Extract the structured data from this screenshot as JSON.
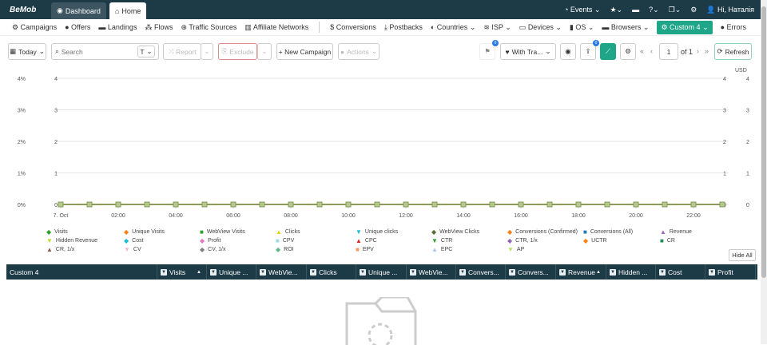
{
  "topbar": {
    "logo": "BeMob",
    "tabs": [
      {
        "label": "Dashboard",
        "active": false
      },
      {
        "label": "Home",
        "active": true
      }
    ],
    "events": "Events",
    "user": "Hi, Наталія"
  },
  "nav": {
    "items": [
      "Campaigns",
      "Offers",
      "Landings",
      "Flows",
      "Traffic Sources",
      "Affiliate Networks"
    ],
    "items2": [
      "Conversions",
      "Postbacks",
      "Countries",
      "ISP",
      "Devices",
      "OS",
      "Browsers",
      "Custom 4",
      "Errors"
    ]
  },
  "toolbar": {
    "date": "Today",
    "search_placeholder": "Search",
    "type": "T",
    "report": "Report",
    "exclude": "Exclude",
    "new_campaign": "+ New Campaign",
    "actions": "Actions",
    "flag_badge": "0",
    "traffic": "With Tra...",
    "share_badge": "0",
    "page": "1",
    "of": "of 1",
    "refresh": "Refresh"
  },
  "chart_data": {
    "type": "line",
    "x": [
      "7. Oct",
      "01:00",
      "02:00",
      "03:00",
      "04:00",
      "05:00",
      "06:00",
      "07:00",
      "08:00",
      "09:00",
      "10:00",
      "11:00",
      "12:00",
      "13:00",
      "14:00",
      "15:00",
      "16:00",
      "17:00",
      "18:00",
      "19:00",
      "20:00",
      "21:00",
      "22:00",
      "23:00"
    ],
    "x_tick_labels": [
      "7. Oct",
      "02:00",
      "04:00",
      "06:00",
      "08:00",
      "10:00",
      "12:00",
      "14:00",
      "16:00",
      "18:00",
      "20:00",
      "22:00"
    ],
    "y_left_pct_ticks": [
      "0%",
      "1%",
      "2%",
      "3%",
      "4%"
    ],
    "y_left_ticks": [
      "0",
      "1",
      "2",
      "3",
      "4"
    ],
    "y_right_ticks": [
      "0",
      "1",
      "2",
      "3",
      "4"
    ],
    "y_right2_ticks": [
      "0",
      "1",
      "2",
      "3",
      "4"
    ],
    "y_right_unit": "USD",
    "ylim": [
      0,
      4
    ],
    "grid": true,
    "values": [
      0,
      0,
      0,
      0,
      0,
      0,
      0,
      0,
      0,
      0,
      0,
      0,
      0,
      0,
      0,
      0,
      0,
      0,
      0,
      0,
      0,
      0,
      0,
      0
    ]
  },
  "legend": [
    {
      "name": "Visits",
      "color": "#2ca02c",
      "sym": "◆"
    },
    {
      "name": "Unique Visits",
      "color": "#ff7f0e",
      "sym": "◆"
    },
    {
      "name": "WebView Visits",
      "color": "#2ca02c",
      "sym": "■"
    },
    {
      "name": "Clicks",
      "color": "#e5d500",
      "sym": "▲"
    },
    {
      "name": "Unique clicks",
      "color": "#17becf",
      "sym": "▼"
    },
    {
      "name": "WebView Clicks",
      "color": "#556b2f",
      "sym": "◆"
    },
    {
      "name": "Conversions (Confirmed)",
      "color": "#ff7f0e",
      "sym": "◆"
    },
    {
      "name": "Conversions (All)",
      "color": "#1f77b4",
      "sym": "■"
    },
    {
      "name": "Revenue",
      "color": "#9467bd",
      "sym": "▲"
    },
    {
      "name": "Hidden Revenue",
      "color": "#bcdc2c",
      "sym": "▼"
    },
    {
      "name": "Cost",
      "color": "#17becf",
      "sym": "◆"
    },
    {
      "name": "Profit",
      "color": "#e377c2",
      "sym": "◆"
    },
    {
      "name": "CPV",
      "color": "#9edae5",
      "sym": "■"
    },
    {
      "name": "CPC",
      "color": "#d62728",
      "sym": "▲"
    },
    {
      "name": "CTR",
      "color": "#2ca02c",
      "sym": "▼"
    },
    {
      "name": "CTR, 1/x",
      "color": "#9467bd",
      "sym": "◆"
    },
    {
      "name": "UCTR",
      "color": "#ff7f0e",
      "sym": "◆"
    },
    {
      "name": "CR",
      "color": "#2a8a5a",
      "sym": "■"
    },
    {
      "name": "CR, 1/x",
      "color": "#8c564b",
      "sym": "▲"
    },
    {
      "name": "CV",
      "color": "#f7b6d2",
      "sym": "▼"
    },
    {
      "name": "CV, 1/x",
      "color": "#7f7f7f",
      "sym": "◆"
    },
    {
      "name": "ROI",
      "color": "#5fb58c",
      "sym": "◆"
    },
    {
      "name": "EPV",
      "color": "#ff9966",
      "sym": "■"
    },
    {
      "name": "EPC",
      "color": "#aec7e8",
      "sym": "▲"
    },
    {
      "name": "AP",
      "color": "#b5e06a",
      "sym": "▼"
    }
  ],
  "hide_all": "Hide All",
  "table": {
    "columns": [
      "Custom 4",
      "Visits",
      "Unique ...",
      "WebVie...",
      "Clicks",
      "Unique ...",
      "WebVie...",
      "Convers...",
      "Convers...",
      "Revenue",
      "Hidden ...",
      "Cost",
      "Profit"
    ]
  }
}
